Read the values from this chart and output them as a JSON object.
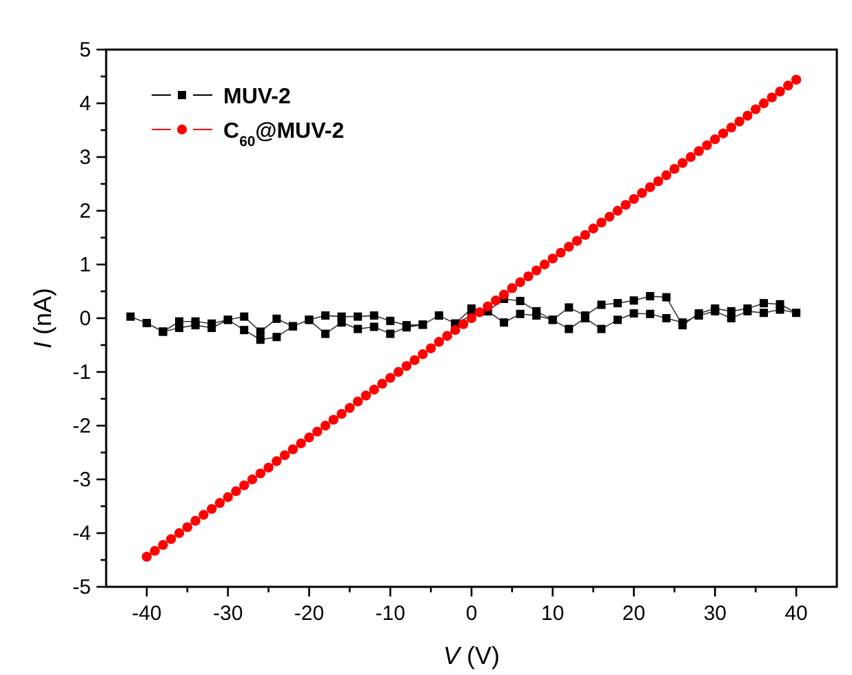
{
  "chart_data": {
    "type": "line",
    "xlabel": "V (V)",
    "ylabel": "I (nA)",
    "xlim": [
      -45,
      45
    ],
    "xticks": [
      -40,
      {
        "value": -35,
        "label": null
      },
      -30,
      {
        "value": -25,
        "label": null
      },
      -20,
      {
        "value": -15,
        "label": null
      },
      -10,
      {
        "value": -5,
        "label": null
      },
      0,
      {
        "value": 5,
        "label": null
      },
      10,
      {
        "value": 15,
        "label": null
      },
      20,
      {
        "value": 25,
        "label": null
      },
      30,
      {
        "value": 35,
        "label": null
      },
      40
    ],
    "ylim": [
      -5,
      5
    ],
    "yticks": [
      -5,
      {
        "value": -4.5,
        "label": null
      },
      -4,
      {
        "value": -3.5,
        "label": null
      },
      -3,
      {
        "value": -2.5,
        "label": null
      },
      -2,
      {
        "value": -1.5,
        "label": null
      },
      -1,
      {
        "value": -0.5,
        "label": null
      },
      0,
      {
        "value": 0.5,
        "label": null
      },
      1,
      {
        "value": 1.5,
        "label": null
      },
      2,
      {
        "value": 2.5,
        "label": null
      },
      3,
      {
        "value": 3.5,
        "label": null
      },
      4,
      {
        "value": 4.5,
        "label": null
      },
      5
    ],
    "grid": false,
    "legend": "top left",
    "line_style": "solid",
    "series": [
      {
        "name": "MUV-2",
        "color": "#000000",
        "marker": "square",
        "x": [
          -42,
          -40,
          -38,
          -36,
          -34,
          -32,
          -30,
          -28,
          -26,
          -24,
          -22,
          -20,
          -18,
          -16,
          -14,
          -12,
          -10,
          -8,
          -6,
          -4,
          -2,
          0,
          2,
          4,
          6,
          8,
          10,
          12,
          14,
          16,
          18,
          20,
          22,
          24,
          26,
          28,
          30,
          32,
          34,
          36,
          38,
          40,
          38,
          36,
          34,
          32,
          30,
          28,
          26,
          24,
          22,
          20,
          18,
          16,
          14,
          12,
          10,
          8,
          6,
          4,
          2,
          0,
          -2,
          -4,
          -6,
          -8,
          -10,
          -12,
          -14,
          -16,
          -18,
          -20,
          -22,
          -24,
          -26,
          -28,
          -30,
          -32,
          -34,
          -36,
          -38,
          -40
        ],
        "values": [
          0.03,
          -0.09,
          -0.25,
          -0.06,
          -0.06,
          -0.1,
          -0.03,
          0.03,
          -0.25,
          -0.01,
          -0.15,
          -0.03,
          0.05,
          0.03,
          0.03,
          0.05,
          -0.05,
          -0.13,
          -0.12,
          0.05,
          -0.1,
          0.18,
          0.13,
          0.36,
          0.32,
          0.13,
          -0.03,
          0.2,
          0.05,
          0.25,
          0.28,
          0.33,
          0.41,
          0.39,
          -0.13,
          0.09,
          0.18,
          0.13,
          0.18,
          0.28,
          0.26,
          0.1,
          0.16,
          0.1,
          0.13,
          0.0,
          0.13,
          0.05,
          -0.08,
          0.0,
          0.08,
          0.09,
          -0.03,
          -0.2,
          0.0,
          -0.2,
          -0.03,
          0.05,
          0.08,
          -0.08,
          0.13,
          0.05,
          -0.1,
          0.05,
          -0.12,
          -0.17,
          -0.29,
          -0.16,
          -0.2,
          -0.08,
          -0.29,
          -0.03,
          -0.15,
          -0.35,
          -0.4,
          -0.22,
          -0.03,
          -0.18,
          -0.13,
          -0.18,
          -0.25,
          -0.09
        ]
      },
      {
        "name": "C$_{60}$@MUV-2",
        "color": "#ff0000",
        "marker": "circle",
        "x": [
          -40,
          -39,
          -38,
          -37,
          -36,
          -35,
          -34,
          -33,
          -32,
          -31,
          -30,
          -29,
          -28,
          -27,
          -26,
          -25,
          -24,
          -23,
          -22,
          -21,
          -20,
          -19,
          -18,
          -17,
          -16,
          -15,
          -14,
          -13,
          -12,
          -11,
          -10,
          -9,
          -8,
          -7,
          -6,
          -5,
          -4,
          -3,
          -2,
          -1,
          0,
          1,
          2,
          3,
          4,
          5,
          6,
          7,
          8,
          9,
          10,
          11,
          12,
          13,
          14,
          15,
          16,
          17,
          18,
          19,
          20,
          21,
          22,
          23,
          24,
          25,
          26,
          27,
          28,
          29,
          30,
          31,
          32,
          33,
          34,
          35,
          36,
          37,
          38,
          39,
          40
        ],
        "values": [
          -4.44,
          -4.33,
          -4.22,
          -4.11,
          -4.0,
          -3.89,
          -3.77,
          -3.66,
          -3.55,
          -3.44,
          -3.33,
          -3.22,
          -3.11,
          -3.0,
          -2.89,
          -2.78,
          -2.66,
          -2.55,
          -2.44,
          -2.33,
          -2.22,
          -2.11,
          -2.0,
          -1.89,
          -1.78,
          -1.67,
          -1.55,
          -1.44,
          -1.33,
          -1.22,
          -1.11,
          -1.0,
          -0.89,
          -0.78,
          -0.67,
          -0.56,
          -0.44,
          -0.33,
          -0.22,
          -0.11,
          0.0,
          0.11,
          0.22,
          0.33,
          0.44,
          0.56,
          0.67,
          0.78,
          0.89,
          1.0,
          1.11,
          1.22,
          1.33,
          1.44,
          1.55,
          1.67,
          1.78,
          1.89,
          2.0,
          2.11,
          2.22,
          2.33,
          2.44,
          2.55,
          2.66,
          2.78,
          2.89,
          3.0,
          3.11,
          3.22,
          3.33,
          3.44,
          3.55,
          3.66,
          3.77,
          3.89,
          4.0,
          4.11,
          4.22,
          4.33,
          4.44
        ]
      }
    ]
  }
}
